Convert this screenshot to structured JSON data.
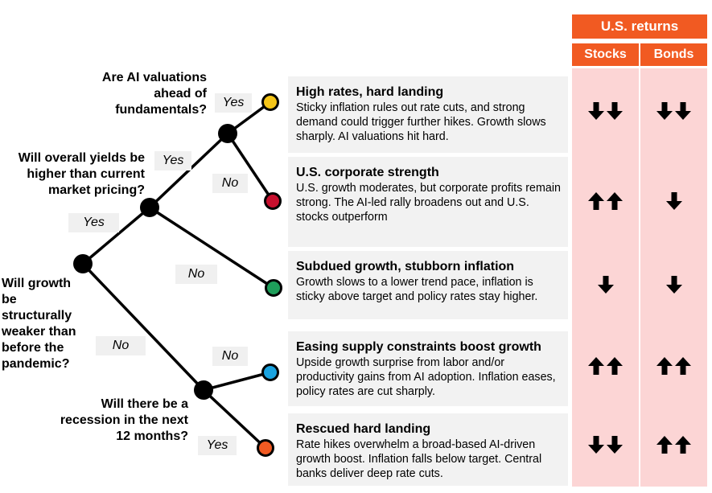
{
  "header": {
    "title": "U.S. returns",
    "stocks": "Stocks",
    "bonds": "Bonds"
  },
  "questions": {
    "q_growth": "Will growth be structurally weaker than before the pandemic?",
    "q_yields": "Will overall yields be higher than current market pricing?",
    "q_ai": "Are AI valuations ahead of fundamentals?",
    "q_recession": "Will there be a recession in the next 12 months?"
  },
  "branch_labels": {
    "growth_yes": "Yes",
    "growth_no": "No",
    "yields_yes": "Yes",
    "yields_no": "No",
    "ai_yes": "Yes",
    "ai_no": "No",
    "recession_no": "No",
    "recession_yes": "Yes"
  },
  "scenarios": [
    {
      "title": "High rates, hard landing",
      "desc": "Sticky inflation rules out rate cuts, and strong demand could trigger further hikes. Growth slows sharply. AI valuations hit hard.",
      "color": "#f5c518",
      "stocks": {
        "direction": "down",
        "count": 2
      },
      "bonds": {
        "direction": "down",
        "count": 2
      }
    },
    {
      "title": "U.S. corporate strength",
      "desc": "U.S. growth moderates, but corporate profits remain strong. The AI-led rally broadens out and U.S. stocks outperform",
      "color": "#c8102e",
      "stocks": {
        "direction": "up",
        "count": 2
      },
      "bonds": {
        "direction": "down",
        "count": 1
      }
    },
    {
      "title": "Subdued growth, stubborn inflation",
      "desc": "Growth slows to a lower trend pace, inflation is sticky above target and policy rates stay higher.",
      "color": "#1e9e5a",
      "stocks": {
        "direction": "down",
        "count": 1
      },
      "bonds": {
        "direction": "down",
        "count": 1
      }
    },
    {
      "title": "Easing supply constraints boost growth",
      "desc": "Upside growth surprise from labor and/or productivity gains from AI adoption. Inflation eases, policy rates are cut sharply.",
      "color": "#1aa3e0",
      "stocks": {
        "direction": "up",
        "count": 2
      },
      "bonds": {
        "direction": "up",
        "count": 2
      }
    },
    {
      "title": "Rescued hard landing",
      "desc": "Rate hikes overwhelm a broad-based AI-driven growth boost. Inflation falls below target. Central banks deliver deep rate cuts.",
      "color": "#f15a22",
      "stocks": {
        "direction": "down",
        "count": 2
      },
      "bonds": {
        "direction": "up",
        "count": 2
      }
    }
  ]
}
